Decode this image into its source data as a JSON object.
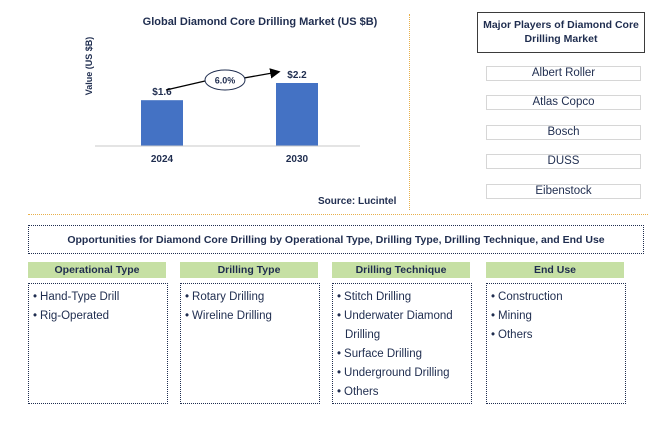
{
  "chart_data": {
    "type": "bar",
    "title": "Global Diamond Core Drilling Market (US $B)",
    "ylabel": "Value (US $B)",
    "categories": [
      "2024",
      "2030"
    ],
    "values": [
      1.6,
      2.2
    ],
    "data_labels": [
      "$1.6",
      "$2.2"
    ],
    "ylim": [
      0,
      2.6
    ],
    "bar_color": "#4472c4",
    "grid": false,
    "annotation": "6.0%"
  },
  "source": "Source: Lucintel",
  "players": {
    "title": "Major Players of Diamond Core Drilling Market",
    "items": [
      "Albert Roller",
      "Atlas Copco",
      "Bosch",
      "DUSS",
      "Eibenstock"
    ]
  },
  "opportunities": {
    "title": "Opportunities for Diamond Core Drilling by Operational Type, Drilling Type, Drilling Technique, and End Use",
    "categories": [
      {
        "header": "Operational Type",
        "items": [
          "Hand-Type Drill",
          "Rig-Operated"
        ]
      },
      {
        "header": "Drilling Type",
        "items": [
          "Rotary Drilling",
          "Wireline Drilling"
        ]
      },
      {
        "header": "Drilling Technique",
        "items": [
          "Stitch Drilling",
          "Underwater Diamond Drilling",
          "Surface Drilling",
          "Underground Drilling",
          "Others"
        ]
      },
      {
        "header": "End Use",
        "items": [
          "Construction",
          "Mining",
          "Others"
        ]
      }
    ]
  },
  "colors": {
    "header_bg": "#c6e0a4",
    "text": "#1f2d4f",
    "divider": "#e8b04a"
  }
}
